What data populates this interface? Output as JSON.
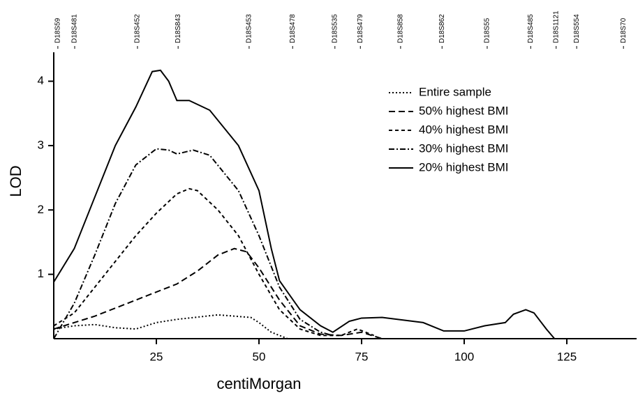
{
  "chart_data": {
    "type": "line",
    "x_label": "centiMorgan",
    "y_label": "LOD",
    "xlim": [
      0,
      142
    ],
    "ylim": [
      0,
      4.45
    ],
    "xticks": [
      25,
      50,
      75,
      100,
      125
    ],
    "yticks": [
      1,
      2,
      3,
      4
    ],
    "legend": "upper right",
    "markers": [
      {
        "name": "D18S59",
        "position": 1
      },
      {
        "name": "D18S481",
        "position": 5.1
      },
      {
        "name": "D18S452",
        "position": 20.4
      },
      {
        "name": "D18S843",
        "position": 30.3
      },
      {
        "name": "D18S453",
        "position": 47.6
      },
      {
        "name": "D18S478",
        "position": 58.2
      },
      {
        "name": "D18S535",
        "position": 68.5
      },
      {
        "name": "D18S479",
        "position": 74.7
      },
      {
        "name": "D18S858",
        "position": 84.5
      },
      {
        "name": "D18S862",
        "position": 94.6
      },
      {
        "name": "D18S55",
        "position": 105.6
      },
      {
        "name": "D18S485",
        "position": 116.2
      },
      {
        "name": "D18S1121",
        "position": 122.4
      },
      {
        "name": "D18S554",
        "position": 127.4
      },
      {
        "name": "D18S70",
        "position": 138.8
      }
    ],
    "series": [
      {
        "name": "Entire sample",
        "color": "#000000",
        "dash": "2,3",
        "x": [
          0,
          5,
          10,
          15,
          20,
          25,
          30,
          40,
          48,
          50,
          53,
          57
        ],
        "values": [
          0.15,
          0.2,
          0.22,
          0.17,
          0.15,
          0.25,
          0.3,
          0.37,
          0.33,
          0.25,
          0.1,
          0
        ]
      },
      {
        "name": "50% highest BMI",
        "color": "#000000",
        "dash": "9,5",
        "x": [
          0,
          10,
          20,
          30,
          35,
          40,
          44,
          47,
          50,
          55,
          60,
          65,
          70,
          75,
          80
        ],
        "values": [
          0.15,
          0.35,
          0.6,
          0.85,
          1.05,
          1.3,
          1.4,
          1.35,
          1.1,
          0.6,
          0.2,
          0.07,
          0.05,
          0.1,
          0
        ]
      },
      {
        "name": "40% highest BMI",
        "color": "#000000",
        "dash": "5,4",
        "x": [
          0,
          5,
          10,
          15,
          20,
          25,
          30,
          33,
          35,
          40,
          45,
          50,
          55,
          60,
          65,
          70,
          74,
          78
        ],
        "values": [
          0.2,
          0.4,
          0.8,
          1.2,
          1.6,
          1.95,
          2.25,
          2.33,
          2.3,
          2.0,
          1.6,
          1.0,
          0.45,
          0.15,
          0.05,
          0.05,
          0.15,
          0.05
        ]
      },
      {
        "name": "30% highest BMI",
        "color": "#000000",
        "dash": "8,3,2,3",
        "x": [
          0,
          5,
          10,
          15,
          20,
          25,
          28,
          30,
          34,
          38,
          45,
          50,
          55,
          60,
          65,
          68
        ],
        "values": [
          0,
          0.55,
          1.3,
          2.1,
          2.7,
          2.95,
          2.93,
          2.87,
          2.93,
          2.85,
          2.3,
          1.6,
          0.8,
          0.3,
          0.1,
          0.05
        ]
      },
      {
        "name": "20% highest BMI",
        "color": "#000000",
        "dash": "none",
        "x": [
          0,
          5,
          10,
          15,
          20,
          24,
          26,
          28,
          30,
          33,
          38,
          45,
          50,
          53,
          55,
          60,
          65,
          68,
          72,
          75,
          80,
          90,
          95,
          100,
          105,
          110,
          112,
          115,
          117,
          120,
          122
        ],
        "values": [
          0.88,
          1.4,
          2.2,
          3.0,
          3.6,
          4.15,
          4.17,
          4.0,
          3.7,
          3.7,
          3.55,
          3.0,
          2.3,
          1.4,
          0.9,
          0.45,
          0.2,
          0.1,
          0.27,
          0.32,
          0.33,
          0.25,
          0.12,
          0.12,
          0.2,
          0.25,
          0.38,
          0.45,
          0.4,
          0.15,
          0
        ]
      }
    ]
  }
}
